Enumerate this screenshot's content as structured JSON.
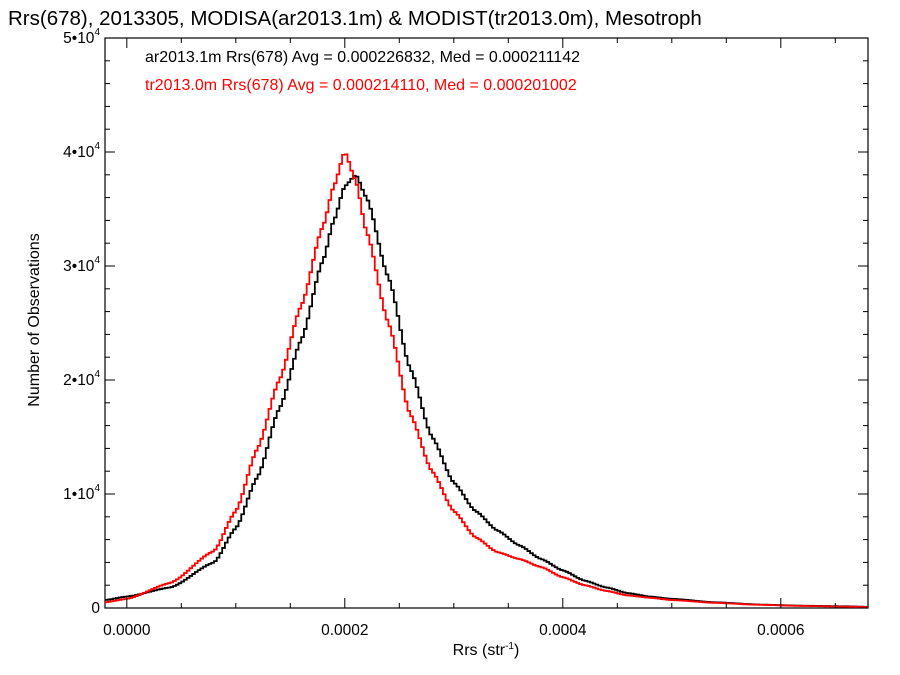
{
  "chart_data": {
    "type": "line",
    "title": "Rrs(678), 2013305, MODISA(ar2013.1m) & MODIST(tr2013.0m), Mesotroph",
    "xlabel": "Rrs (str",
    "xlabel_exp": "-1",
    "xlabel_close": ")",
    "ylabel": "Number of Observations",
    "xlim": [
      -2e-05,
      0.00068
    ],
    "ylim": [
      0,
      50000
    ],
    "x_ticks": [
      {
        "value": 0.0,
        "label": "0.0000"
      },
      {
        "value": 0.0002,
        "label": "0.0002"
      },
      {
        "value": 0.0004,
        "label": "0.0004"
      },
      {
        "value": 0.0006,
        "label": "0.0006"
      }
    ],
    "y_ticks": [
      {
        "value": 0,
        "label": "0",
        "exp": ""
      },
      {
        "value": 10000,
        "label": "1•10",
        "exp": "4"
      },
      {
        "value": 20000,
        "label": "2•10",
        "exp": "4"
      },
      {
        "value": 30000,
        "label": "3•10",
        "exp": "4"
      },
      {
        "value": 40000,
        "label": "4•10",
        "exp": "4"
      },
      {
        "value": 50000,
        "label": "5•10",
        "exp": "4"
      }
    ],
    "grid": false,
    "legend": {
      "placement": "top-left",
      "entries": [
        {
          "text": "ar2013.1m Rrs(678) Avg = 0.000226832, Med = 0.000211142",
          "color": "#000000"
        },
        {
          "text": "tr2013.0m Rrs(678) Avg = 0.000214110, Med = 0.000201002",
          "color": "#ff0000"
        }
      ]
    },
    "series": [
      {
        "color": "#000000",
        "points": [
          [
            -2e-05,
            700
          ],
          [
            0.0,
            1000
          ],
          [
            4e-05,
            1800
          ],
          [
            8e-05,
            4000
          ],
          [
            0.0001,
            7000
          ],
          [
            0.00012,
            11500
          ],
          [
            0.00014,
            17500
          ],
          [
            0.00016,
            23500
          ],
          [
            0.00018,
            30500
          ],
          [
            0.00019,
            34000
          ],
          [
            0.0002,
            37000
          ],
          [
            0.00021,
            38000
          ],
          [
            0.00022,
            36000
          ],
          [
            0.00024,
            29000
          ],
          [
            0.00026,
            21000
          ],
          [
            0.00028,
            15000
          ],
          [
            0.0003,
            11000
          ],
          [
            0.00032,
            8500
          ],
          [
            0.00034,
            6800
          ],
          [
            0.00036,
            5500
          ],
          [
            0.00038,
            4300
          ],
          [
            0.0004,
            3300
          ],
          [
            0.00042,
            2400
          ],
          [
            0.00044,
            1800
          ],
          [
            0.00046,
            1300
          ],
          [
            0.00048,
            1000
          ],
          [
            0.0005,
            800
          ],
          [
            0.00054,
            500
          ],
          [
            0.00058,
            300
          ],
          [
            0.00062,
            200
          ],
          [
            0.00066,
            150
          ],
          [
            0.00068,
            100
          ]
        ]
      },
      {
        "color": "#ff0000",
        "points": [
          [
            -2e-05,
            500
          ],
          [
            0.0,
            800
          ],
          [
            4e-05,
            2200
          ],
          [
            8e-05,
            5000
          ],
          [
            0.0001,
            8500
          ],
          [
            0.00012,
            14000
          ],
          [
            0.00014,
            20000
          ],
          [
            0.00016,
            26500
          ],
          [
            0.00018,
            33500
          ],
          [
            0.00019,
            37000
          ],
          [
            0.0002,
            40000
          ],
          [
            0.00021,
            37500
          ],
          [
            0.00022,
            33000
          ],
          [
            0.00024,
            25000
          ],
          [
            0.00026,
            17000
          ],
          [
            0.00028,
            12000
          ],
          [
            0.0003,
            8500
          ],
          [
            0.00032,
            6200
          ],
          [
            0.00034,
            4900
          ],
          [
            0.00036,
            4300
          ],
          [
            0.00038,
            3600
          ],
          [
            0.0004,
            2700
          ],
          [
            0.00042,
            2000
          ],
          [
            0.00044,
            1500
          ],
          [
            0.00046,
            1100
          ],
          [
            0.00048,
            900
          ],
          [
            0.0005,
            700
          ],
          [
            0.00054,
            450
          ],
          [
            0.00058,
            280
          ],
          [
            0.00062,
            180
          ],
          [
            0.00066,
            120
          ],
          [
            0.00068,
            80
          ]
        ]
      }
    ]
  }
}
